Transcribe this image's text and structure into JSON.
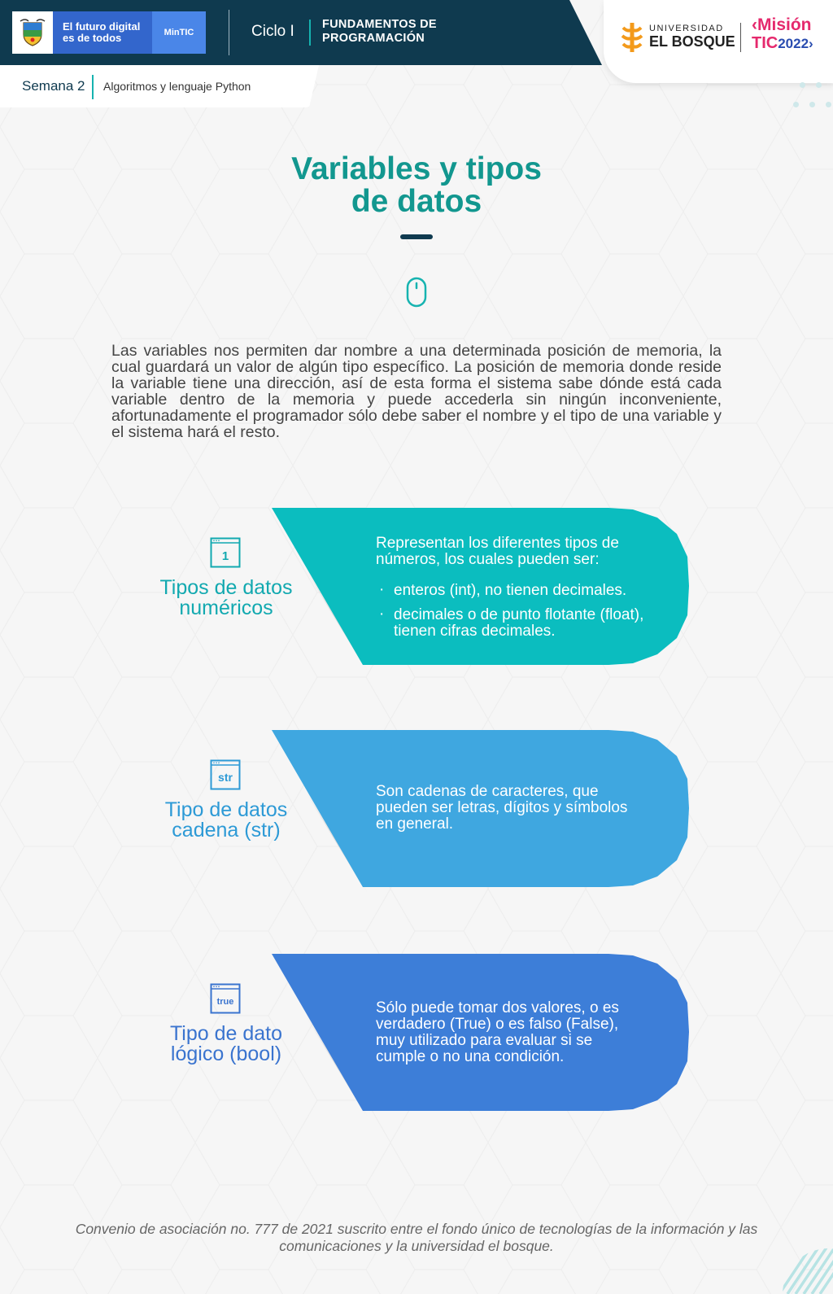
{
  "header": {
    "gov_text": "El futuro digital es de todos",
    "gov_badge": "MinTIC",
    "cycle": "Ciclo I",
    "course": "FUNDAMENTOS DE PROGRAMACIÓN",
    "university_small": "UNIVERSIDAD",
    "university_big": "EL BOSQUE",
    "mision_top": "‹Misión",
    "mision_bottom": "TIC",
    "mision_year": "2022›",
    "week": "Semana 2",
    "topic": "Algoritmos y lenguaje Python"
  },
  "title": {
    "line1": "Variables y tipos",
    "line2": "de datos"
  },
  "intro": "Las variables nos permiten dar nombre a una determinada posición de memoria, la cual guardará un valor de algún tipo específico. La posición de memoria donde reside la variable tiene una dirección, así de esta forma el sistema sabe dónde está cada variable dentro de la memoria y puede accederla sin ningún inconveniente, afortunadamente el programador sólo debe saber el nombre y el tipo de una variable y el sistema hará el resto.",
  "cards": [
    {
      "icon_text": "1",
      "icon_name": "number-window-icon",
      "label_line1": "Tipos de datos",
      "label_line2": "numéricos",
      "description": "Representan los diferentes tipos de números, los cuales pueden ser:",
      "bullets": [
        "enteros (int), no tienen decimales.",
        "decimales o de punto flotante (float), tienen cifras decimales."
      ],
      "color": "#0bbdbf"
    },
    {
      "icon_text": "str",
      "icon_name": "string-window-icon",
      "label_line1": "Tipo de datos",
      "label_line2": "cadena (str)",
      "description": "Son cadenas de caracteres, que pueden ser letras, dígitos y símbolos en general.",
      "color": "#3fa7e0"
    },
    {
      "icon_text": "true",
      "icon_name": "boolean-window-icon",
      "label_line1": "Tipo de dato",
      "label_line2": "lógico (bool)",
      "description": "Sólo puede tomar dos valores, o es verdadero (True) o es falso (False), muy utilizado para evaluar si se cumple o no una condición.",
      "color": "#3d7ed8"
    }
  ],
  "footer": "Convenio de asociación no. 777 de 2021 suscrito entre el fondo único de tecnologías de la información y las comunicaciones y la universidad el bosque.",
  "colors": {
    "navy": "#0f3a4f",
    "teal_title": "#12978f",
    "accent_teal": "#16b3b0"
  }
}
